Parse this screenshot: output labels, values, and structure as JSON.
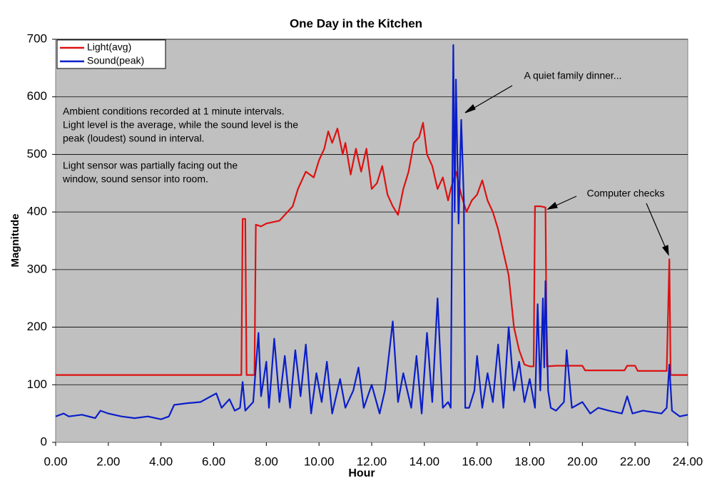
{
  "chart_data": {
    "type": "line",
    "title": "One Day in the Kitchen",
    "xlabel": "Hour",
    "ylabel": "Magnitude",
    "xlim": [
      0,
      24
    ],
    "ylim": [
      0,
      700
    ],
    "xticks": [
      {
        "value": 0,
        "label": "0.00"
      },
      {
        "value": 2,
        "label": "2.00"
      },
      {
        "value": 4,
        "label": "4.00"
      },
      {
        "value": 6,
        "label": "6.00"
      },
      {
        "value": 8,
        "label": "8.00"
      },
      {
        "value": 10,
        "label": "10.00"
      },
      {
        "value": 12,
        "label": "12.00"
      },
      {
        "value": 14,
        "label": "14.00"
      },
      {
        "value": 16,
        "label": "16.00"
      },
      {
        "value": 18,
        "label": "18.00"
      },
      {
        "value": 20,
        "label": "20.00"
      },
      {
        "value": 22,
        "label": "22.00"
      },
      {
        "value": 24,
        "label": "24.00"
      }
    ],
    "yticks": [
      0,
      100,
      200,
      300,
      400,
      500,
      600,
      700
    ],
    "grid": true,
    "legend": "top-left",
    "series": [
      {
        "name": "Light(avg)",
        "color": "#dd1111",
        "x": [
          0,
          7.05,
          7.1,
          7.2,
          7.25,
          7.55,
          7.6,
          7.8,
          8.0,
          8.5,
          9.0,
          9.2,
          9.5,
          9.8,
          10.0,
          10.2,
          10.35,
          10.5,
          10.7,
          10.9,
          11.0,
          11.2,
          11.4,
          11.6,
          11.8,
          12.0,
          12.2,
          12.4,
          12.6,
          12.8,
          13.0,
          13.2,
          13.4,
          13.6,
          13.8,
          13.95,
          14.1,
          14.3,
          14.5,
          14.7,
          14.9,
          15.0,
          15.2,
          15.4,
          15.6,
          15.8,
          16.0,
          16.2,
          16.4,
          16.6,
          16.8,
          17.0,
          17.2,
          17.4,
          17.6,
          17.8,
          18.0,
          18.15,
          18.2,
          18.4,
          18.6,
          18.65,
          19.0,
          20.0,
          20.1,
          21.6,
          21.7,
          22.0,
          22.1,
          23.2,
          23.3,
          23.35,
          24
        ],
        "values": [
          117,
          117,
          388,
          388,
          117,
          117,
          378,
          375,
          380,
          385,
          410,
          440,
          470,
          460,
          490,
          510,
          540,
          520,
          545,
          500,
          520,
          465,
          510,
          470,
          510,
          440,
          450,
          480,
          430,
          410,
          395,
          440,
          470,
          520,
          530,
          555,
          500,
          480,
          440,
          460,
          420,
          440,
          470,
          430,
          400,
          420,
          430,
          455,
          420,
          400,
          370,
          330,
          290,
          200,
          160,
          135,
          132,
          132,
          410,
          410,
          408,
          132,
          133,
          133,
          125,
          125,
          133,
          133,
          124,
          124,
          318,
          117,
          117
        ]
      },
      {
        "name": "Sound(peak)",
        "color": "#0a1ec8",
        "x": [
          0,
          0.3,
          0.5,
          1.0,
          1.5,
          1.7,
          2.0,
          2.5,
          3.0,
          3.5,
          4.0,
          4.3,
          4.5,
          5.0,
          5.5,
          5.9,
          6.1,
          6.3,
          6.6,
          6.8,
          7.0,
          7.1,
          7.2,
          7.5,
          7.7,
          7.8,
          8.0,
          8.1,
          8.3,
          8.5,
          8.7,
          8.9,
          9.1,
          9.3,
          9.5,
          9.7,
          9.9,
          10.1,
          10.3,
          10.5,
          10.8,
          11.0,
          11.3,
          11.5,
          11.7,
          12.0,
          12.3,
          12.5,
          12.8,
          13.0,
          13.2,
          13.5,
          13.7,
          13.9,
          14.1,
          14.3,
          14.5,
          14.7,
          14.9,
          15.0,
          15.1,
          15.15,
          15.2,
          15.3,
          15.4,
          15.5,
          15.55,
          15.7,
          15.9,
          16.0,
          16.2,
          16.4,
          16.6,
          16.8,
          17.0,
          17.2,
          17.4,
          17.6,
          17.8,
          18.0,
          18.2,
          18.3,
          18.4,
          18.5,
          18.55,
          18.6,
          18.7,
          18.8,
          19.0,
          19.3,
          19.4,
          19.6,
          20.0,
          20.3,
          20.6,
          21.0,
          21.5,
          21.7,
          21.9,
          22.3,
          23.0,
          23.2,
          23.3,
          23.4,
          23.7,
          24.0
        ],
        "values": [
          45,
          50,
          45,
          48,
          42,
          55,
          50,
          45,
          42,
          45,
          40,
          45,
          65,
          68,
          70,
          80,
          85,
          60,
          75,
          55,
          60,
          105,
          55,
          70,
          190,
          80,
          140,
          60,
          180,
          70,
          150,
          60,
          160,
          80,
          170,
          50,
          120,
          70,
          140,
          50,
          110,
          60,
          90,
          130,
          60,
          100,
          50,
          90,
          210,
          70,
          120,
          60,
          150,
          50,
          190,
          70,
          250,
          60,
          70,
          60,
          690,
          400,
          630,
          380,
          560,
          420,
          60,
          60,
          90,
          150,
          60,
          120,
          70,
          170,
          60,
          200,
          90,
          140,
          70,
          110,
          60,
          240,
          90,
          250,
          130,
          280,
          90,
          60,
          55,
          70,
          160,
          60,
          70,
          50,
          60,
          55,
          50,
          80,
          50,
          55,
          50,
          60,
          135,
          55,
          45,
          48
        ]
      }
    ],
    "annotations": [
      {
        "lines": [
          "Ambient conditions recorded at 1 minute intervals.",
          "Light level is the average, while the sound level is the",
          "peak (loudest) sound in interval."
        ]
      },
      {
        "lines": [
          "Light sensor was partially facing out the",
          "window, sound sensor into room."
        ]
      },
      {
        "lines": [
          "A quiet family dinner..."
        ]
      },
      {
        "lines": [
          "Computer checks"
        ]
      }
    ]
  }
}
